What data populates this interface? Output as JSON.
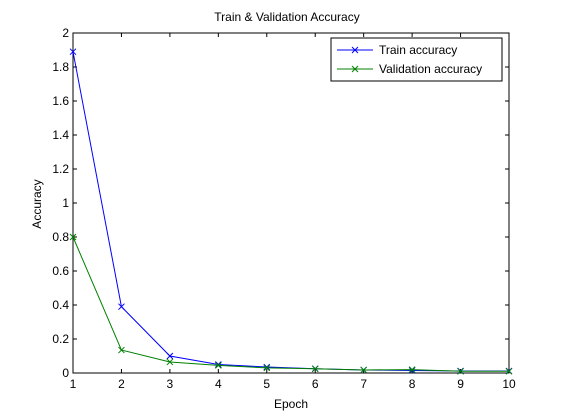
{
  "chart_data": {
    "type": "line",
    "title": "Train & Validation Accuracy",
    "xlabel": "Epoch",
    "ylabel": "Accuracy",
    "xlim": [
      1,
      10
    ],
    "ylim": [
      0,
      2
    ],
    "x": [
      1,
      2,
      3,
      4,
      5,
      6,
      7,
      8,
      9,
      10
    ],
    "x_ticks": [
      "1",
      "2",
      "3",
      "4",
      "5",
      "6",
      "7",
      "8",
      "9",
      "10"
    ],
    "y_ticks": [
      "0",
      "0.2",
      "0.4",
      "0.6",
      "0.8",
      "1",
      "1.2",
      "1.4",
      "1.6",
      "1.8",
      "2"
    ],
    "grid": false,
    "legend_position": "top-right",
    "marker": "x",
    "series": [
      {
        "name": "Train accuracy",
        "color": "#0000ff",
        "values": [
          1.89,
          0.39,
          0.1,
          0.05,
          0.035,
          0.025,
          0.018,
          0.015,
          0.012,
          0.012
        ]
      },
      {
        "name": "Validation accuracy",
        "color": "#008000",
        "values": [
          0.8,
          0.135,
          0.065,
          0.045,
          0.03,
          0.025,
          0.018,
          0.02,
          0.01,
          0.01
        ]
      }
    ]
  }
}
